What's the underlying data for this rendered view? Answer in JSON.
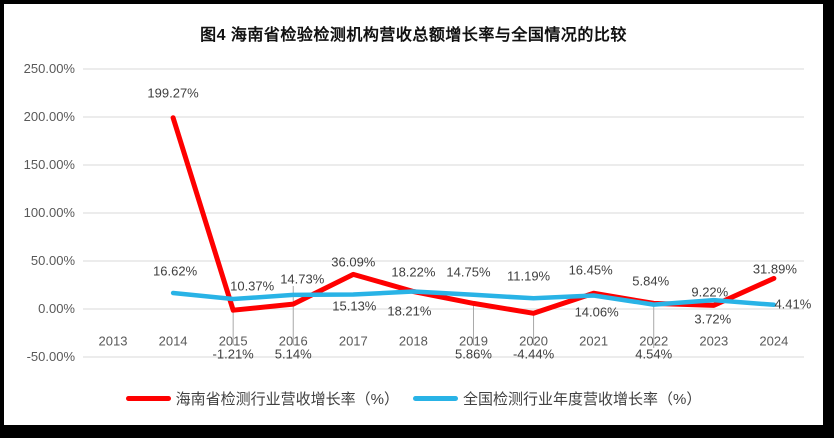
{
  "title": "图4 海南省检验检测机构营收总额增长率与全国情况的比较",
  "colors": {
    "hainan_line": "#FE0000",
    "national_line": "#29B3E6",
    "grid": "#D9D9D9",
    "leader": "#A8A8A8",
    "axis_text": "#595959",
    "data_label_text": "#404040",
    "frame": "#000000",
    "background": "#FFFFFF"
  },
  "chart_data": {
    "type": "line",
    "title": "图4 海南省检验检测机构营收总额增长率与全国情况的比较",
    "grid": true,
    "legend_position": "bottom",
    "ylim": [
      -50,
      250
    ],
    "x_axis": {
      "labels": [
        "2013",
        "2014",
        "2015",
        "2016",
        "2017",
        "2018",
        "2019",
        "2020",
        "2021",
        "2022",
        "2023",
        "2024"
      ]
    },
    "y_axis": {
      "ticks": [
        "250.00%",
        "200.00%",
        "150.00%",
        "100.00%",
        "50.00%",
        "0.00%",
        "-50.00%"
      ],
      "tick_values": [
        250,
        200,
        150,
        100,
        50,
        0,
        -50
      ]
    },
    "series": [
      {
        "name": "海南省检测行业营收增长率（%）",
        "color": "#FE0000",
        "points": [
          {
            "year": 2014,
            "value": 199.27,
            "label": "199.27%"
          },
          {
            "year": 2015,
            "value": -1.21,
            "label": "-1.21%"
          },
          {
            "year": 2016,
            "value": 5.14,
            "label": "5.14%"
          },
          {
            "year": 2017,
            "value": 36.09,
            "label": "36.09%"
          },
          {
            "year": 2018,
            "value": 18.22,
            "label": "18.22%"
          },
          {
            "year": 2019,
            "value": 5.86,
            "label": "5.86%"
          },
          {
            "year": 2020,
            "value": -4.44,
            "label": "-4.44%"
          },
          {
            "year": 2021,
            "value": 16.45,
            "label": "16.45%"
          },
          {
            "year": 2022,
            "value": 5.84,
            "label": "5.84%"
          },
          {
            "year": 2023,
            "value": 3.72,
            "label": "3.72%"
          },
          {
            "year": 2024,
            "value": 31.89,
            "label": "31.89%"
          }
        ]
      },
      {
        "name": "全国检测行业年度营收增长率（%）",
        "color": "#29B3E6",
        "points": [
          {
            "year": 2014,
            "value": 16.62,
            "label": "16.62%"
          },
          {
            "year": 2015,
            "value": 10.37,
            "label": "10.37%"
          },
          {
            "year": 2016,
            "value": 14.73,
            "label": "14.73%"
          },
          {
            "year": 2017,
            "value": 15.13,
            "label": "15.13%"
          },
          {
            "year": 2018,
            "value": 18.21,
            "label": "18.21%"
          },
          {
            "year": 2019,
            "value": 14.75,
            "label": "14.75%"
          },
          {
            "year": 2020,
            "value": 11.19,
            "label": "11.19%"
          },
          {
            "year": 2021,
            "value": 14.06,
            "label": "14.06%"
          },
          {
            "year": 2022,
            "value": 4.54,
            "label": "4.54%"
          },
          {
            "year": 2023,
            "value": 9.22,
            "label": "9.22%"
          },
          {
            "year": 2024,
            "value": 4.41,
            "label": "4.41%"
          }
        ]
      }
    ]
  }
}
